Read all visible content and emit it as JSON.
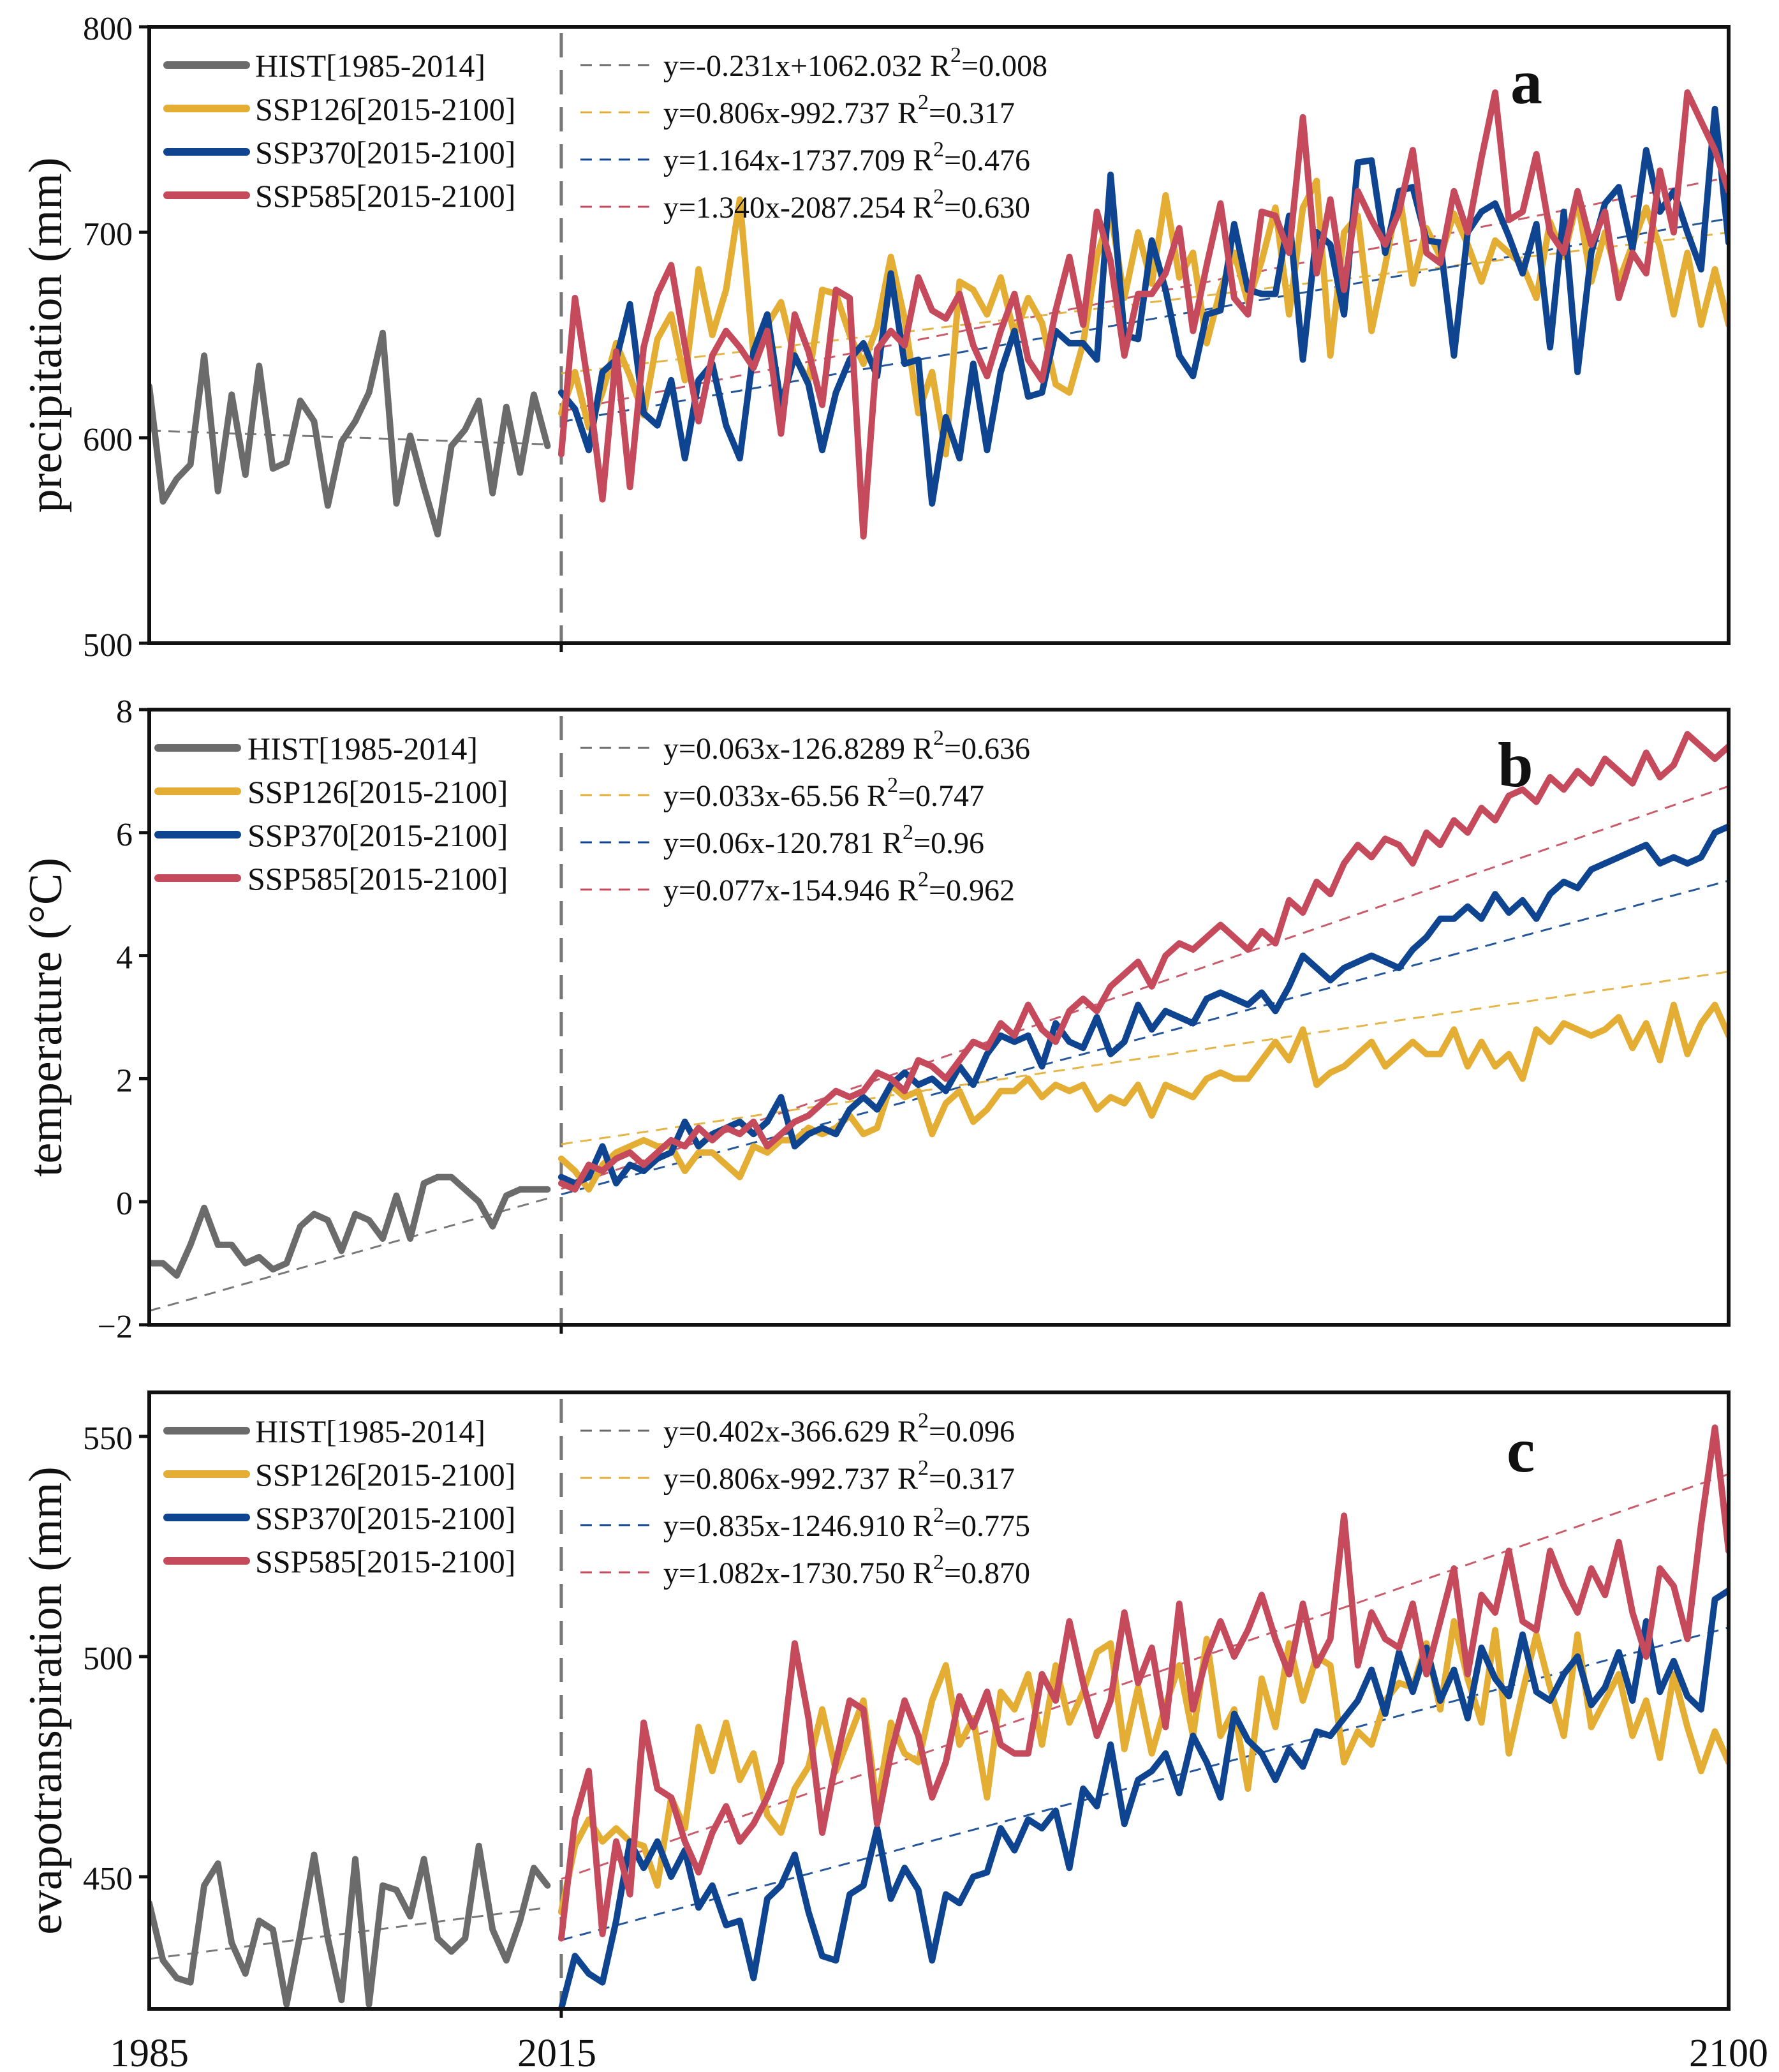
{
  "colors": {
    "hist": "#6b6b6b",
    "ssp126": "#e4ae34",
    "ssp370": "#0f4590",
    "ssp585": "#c54a5c"
  },
  "shared_x_axis": {
    "tick_labels": [
      "1985",
      "2015",
      "2100"
    ]
  },
  "chart_data": [
    {
      "type": "line",
      "panel_label": "a",
      "ylabel": "precipitation (mm)",
      "xlabel": "",
      "xlim": [
        1985,
        2100
      ],
      "ylim": [
        500,
        800
      ],
      "yticks": [
        500,
        600,
        700,
        800
      ],
      "divider_x": 2015,
      "legend": [
        "HIST[1985-2014]",
        "SSP126[2015-2100]",
        "SSP370[2015-2100]",
        "SSP585[2015-2100]"
      ],
      "legend_position": "top-left",
      "equations": [
        "y=-0.231x+1062.032 R²=0.008",
        "y=0.806x-992.737 R²=0.317",
        "y=1.164x-1737.709 R²=0.476",
        "y=1.340x-2087.254 R²=0.630"
      ],
      "series": [
        {
          "name": "HIST[1985-2014]",
          "key": "hist",
          "x_start": 1985,
          "trend": {
            "slope": -0.231,
            "intercept": 1062.032
          },
          "values": [
            625,
            569,
            580,
            587,
            640,
            574,
            621,
            582,
            635,
            585,
            588,
            618,
            608,
            567,
            598,
            608,
            622,
            651,
            568,
            601,
            576,
            553,
            596,
            604,
            618,
            573,
            615,
            583,
            621,
            596
          ]
        },
        {
          "name": "SSP126[2015-2100]",
          "key": "ssp126",
          "x_start": 2015,
          "trend": {
            "slope": 0.806,
            "intercept": -992.737
          },
          "values": [
            612,
            632,
            605,
            622,
            646,
            630,
            611,
            648,
            660,
            628,
            682,
            650,
            672,
            716,
            640,
            655,
            666,
            639,
            628,
            672,
            670,
            650,
            636,
            654,
            688,
            658,
            612,
            632,
            592,
            676,
            672,
            660,
            678,
            650,
            668,
            656,
            626,
            622,
            646,
            688,
            710,
            668,
            700,
            675,
            718,
            678,
            690,
            646,
            672,
            690,
            666,
            686,
            712,
            660,
            712,
            725,
            640,
            700,
            708,
            652,
            684,
            720,
            675,
            702,
            688,
            709,
            694,
            676,
            696,
            690,
            684,
            668,
            705,
            688,
            716,
            676,
            700,
            676,
            694,
            712,
            693,
            660,
            690,
            655,
            682,
            655
          ]
        },
        {
          "name": "SSP370[2015-2100]",
          "key": "ssp370",
          "x_start": 2015,
          "trend": {
            "slope": 1.164,
            "intercept": -1737.709
          },
          "values": [
            622,
            614,
            594,
            632,
            638,
            665,
            612,
            606,
            628,
            590,
            628,
            636,
            606,
            590,
            642,
            660,
            616,
            640,
            626,
            594,
            622,
            638,
            646,
            630,
            680,
            636,
            638,
            568,
            610,
            590,
            636,
            594,
            632,
            652,
            620,
            622,
            652,
            646,
            646,
            638,
            728,
            650,
            648,
            696,
            672,
            640,
            630,
            660,
            662,
            704,
            672,
            670,
            670,
            708,
            638,
            700,
            694,
            660,
            734,
            735,
            690,
            720,
            722,
            696,
            695,
            640,
            700,
            710,
            714,
            698,
            680,
            704,
            644,
            710,
            632,
            690,
            714,
            722,
            692,
            740,
            710,
            720,
            700,
            682,
            760,
            695
          ]
        },
        {
          "name": "SSP585[2015-2100]",
          "key": "ssp585",
          "x_start": 2015,
          "trend": {
            "slope": 1.34,
            "intercept": -2087.254
          },
          "values": [
            592,
            668,
            624,
            570,
            642,
            576,
            644,
            670,
            684,
            645,
            608,
            640,
            652,
            644,
            634,
            652,
            602,
            660,
            642,
            616,
            672,
            668,
            552,
            643,
            652,
            645,
            678,
            662,
            658,
            670,
            645,
            630,
            652,
            670,
            638,
            628,
            662,
            688,
            655,
            710,
            686,
            640,
            670,
            670,
            680,
            702,
            652,
            684,
            714,
            668,
            660,
            710,
            708,
            690,
            756,
            680,
            716,
            672,
            720,
            706,
            694,
            710,
            740,
            690,
            685,
            720,
            700,
            736,
            768,
            706,
            710,
            738,
            700,
            690,
            720,
            694,
            710,
            668,
            690,
            680,
            730,
            700,
            768,
            754,
            740,
            720
          ]
        }
      ]
    },
    {
      "type": "line",
      "panel_label": "b",
      "ylabel": "temperature (°C)",
      "xlabel": "",
      "xlim": [
        1985,
        2100
      ],
      "ylim": [
        -2,
        8
      ],
      "yticks": [
        -2,
        0,
        2,
        4,
        6,
        8
      ],
      "divider_x": 2015,
      "legend": [
        "HIST[1985-2014]",
        "SSP126[2015-2100]",
        "SSP370[2015-2100]",
        "SSP585[2015-2100]"
      ],
      "legend_position": "top-left",
      "equations": [
        "y=0.063x-126.8289 R²=0.636",
        "y=0.033x-65.56 R²=0.747",
        "y=0.06x-120.781 R²=0.96",
        "y=0.077x-154.946 R²=0.962"
      ],
      "series": [
        {
          "name": "HIST[1985-2014]",
          "key": "hist",
          "x_start": 1985,
          "trend": {
            "slope": 0.063,
            "intercept": -126.8289
          },
          "values": [
            -1.0,
            -1.0,
            -1.2,
            -0.7,
            -0.1,
            -0.7,
            -0.7,
            -1.0,
            -0.9,
            -1.1,
            -1.0,
            -0.4,
            -0.2,
            -0.3,
            -0.8,
            -0.2,
            -0.3,
            -0.6,
            0.1,
            -0.6,
            0.3,
            0.4,
            0.4,
            0.2,
            0.0,
            -0.4,
            0.1,
            0.2,
            0.2,
            0.2
          ]
        },
        {
          "name": "SSP126[2015-2100]",
          "key": "ssp126",
          "x_start": 2015,
          "trend": {
            "slope": 0.033,
            "intercept": -65.56
          },
          "values": [
            0.7,
            0.5,
            0.2,
            0.6,
            0.8,
            0.9,
            1.0,
            0.9,
            0.9,
            0.5,
            0.8,
            0.8,
            0.6,
            0.4,
            0.9,
            0.8,
            1.0,
            1.0,
            1.2,
            1.1,
            1.2,
            1.4,
            1.1,
            1.2,
            1.9,
            1.7,
            1.8,
            1.1,
            1.6,
            1.8,
            1.3,
            1.5,
            1.8,
            1.8,
            2.0,
            1.7,
            1.9,
            1.8,
            1.9,
            1.5,
            1.7,
            1.6,
            1.9,
            1.4,
            1.9,
            1.8,
            1.7,
            2.0,
            2.1,
            2.0,
            2.0,
            2.3,
            2.6,
            2.3,
            2.8,
            1.9,
            2.1,
            2.2,
            2.4,
            2.6,
            2.2,
            2.4,
            2.6,
            2.4,
            2.4,
            2.8,
            2.2,
            2.6,
            2.2,
            2.4,
            2.0,
            2.8,
            2.6,
            2.9,
            2.8,
            2.7,
            2.8,
            3.0,
            2.5,
            2.9,
            2.3,
            3.2,
            2.4,
            2.9,
            3.2,
            2.7
          ]
        },
        {
          "name": "SSP370[2015-2100]",
          "key": "ssp370",
          "x_start": 2015,
          "trend": {
            "slope": 0.06,
            "intercept": -120.781
          },
          "values": [
            0.4,
            0.3,
            0.4,
            0.9,
            0.3,
            0.6,
            0.5,
            0.7,
            0.8,
            1.3,
            0.9,
            1.1,
            1.2,
            1.3,
            1.1,
            1.3,
            1.7,
            0.9,
            1.1,
            1.2,
            1.1,
            1.5,
            1.7,
            1.5,
            1.9,
            2.1,
            1.9,
            2.0,
            1.8,
            2.2,
            1.9,
            2.4,
            2.7,
            2.6,
            2.7,
            2.2,
            2.9,
            2.6,
            2.5,
            3.0,
            2.4,
            2.6,
            3.2,
            2.8,
            3.1,
            3.0,
            2.9,
            3.3,
            3.4,
            3.3,
            3.2,
            3.4,
            3.1,
            3.5,
            4.0,
            3.8,
            3.6,
            3.8,
            3.9,
            4.0,
            3.9,
            3.8,
            4.1,
            4.3,
            4.6,
            4.6,
            4.8,
            4.6,
            5.0,
            4.7,
            4.9,
            4.6,
            5.0,
            5.2,
            5.1,
            5.4,
            5.5,
            5.6,
            5.7,
            5.8,
            5.5,
            5.6,
            5.5,
            5.6,
            6.0,
            6.1
          ]
        },
        {
          "name": "SSP585[2015-2100]",
          "key": "ssp585",
          "x_start": 2015,
          "trend": {
            "slope": 0.077,
            "intercept": -154.946
          },
          "values": [
            0.3,
            0.2,
            0.6,
            0.5,
            0.7,
            0.8,
            0.6,
            0.8,
            1.0,
            0.9,
            1.2,
            1.0,
            1.2,
            1.1,
            1.3,
            0.9,
            1.1,
            1.3,
            1.4,
            1.6,
            1.8,
            1.7,
            1.8,
            2.1,
            2.0,
            1.8,
            2.3,
            2.2,
            2.0,
            2.3,
            2.6,
            2.5,
            2.9,
            2.7,
            3.2,
            2.8,
            2.6,
            3.1,
            3.3,
            3.1,
            3.5,
            3.7,
            3.9,
            3.5,
            4.0,
            4.2,
            4.1,
            4.3,
            4.5,
            4.3,
            4.1,
            4.4,
            4.2,
            4.9,
            4.7,
            5.2,
            5.0,
            5.5,
            5.8,
            5.6,
            5.9,
            5.8,
            5.5,
            6.0,
            5.8,
            6.2,
            6.0,
            6.4,
            6.2,
            6.6,
            6.7,
            6.5,
            6.9,
            6.7,
            7.0,
            6.8,
            7.2,
            7.0,
            6.8,
            7.3,
            6.9,
            7.1,
            7.6,
            7.4,
            7.2,
            7.4
          ]
        }
      ]
    },
    {
      "type": "line",
      "panel_label": "c",
      "ylabel": "evapotranspiration (mm)",
      "xlabel": "",
      "xlim": [
        1985,
        2100
      ],
      "ylim": [
        420,
        560
      ],
      "yticks": [
        450,
        500,
        550
      ],
      "divider_x": 2015,
      "legend": [
        "HIST[1985-2014]",
        "SSP126[2015-2100]",
        "SSP370[2015-2100]",
        "SSP585[2015-2100]"
      ],
      "legend_position": "top-left",
      "equations": [
        "y=0.402x-366.629 R²=0.096",
        "y=0.806x-992.737 R²=0.317",
        "y=0.835x-1246.910 R²=0.775",
        "y=1.082x-1730.750 R²=0.870"
      ],
      "series": [
        {
          "name": "HIST[1985-2014]",
          "key": "hist",
          "x_start": 1985,
          "trend": {
            "slope": 0.402,
            "intercept": -366.629
          },
          "values": [
            444,
            431,
            427,
            426,
            448,
            453,
            435,
            428,
            440,
            438,
            421,
            437,
            455,
            436,
            422,
            454,
            421,
            448,
            447,
            441,
            454,
            436,
            433,
            436,
            457,
            438,
            431,
            440,
            452,
            448
          ]
        },
        {
          "name": "SSP126[2015-2100]",
          "key": "ssp126",
          "x_start": 2015,
          "trend": {
            "slope": 0.806,
            "intercept": -992.737
          },
          "values": [
            442,
            457,
            463,
            458,
            461,
            458,
            457,
            448,
            468,
            461,
            484,
            474,
            485,
            472,
            478,
            464,
            460,
            470,
            475,
            488,
            474,
            482,
            490,
            466,
            485,
            478,
            476,
            490,
            498,
            480,
            486,
            468,
            492,
            488,
            496,
            480,
            498,
            485,
            492,
            501,
            503,
            479,
            493,
            478,
            489,
            498,
            482,
            504,
            482,
            488,
            470,
            495,
            484,
            503,
            490,
            500,
            498,
            476,
            483,
            480,
            490,
            494,
            493,
            503,
            488,
            508,
            495,
            485,
            506,
            478,
            492,
            505,
            493,
            482,
            505,
            484,
            490,
            496,
            482,
            490,
            477,
            496,
            484,
            474,
            483,
            476
          ]
        },
        {
          "name": "SSP370[2015-2100]",
          "key": "ssp370",
          "x_start": 2015,
          "trend": {
            "slope": 0.835,
            "intercept": -1246.91
          },
          "values": [
            420,
            432,
            428,
            426,
            440,
            458,
            452,
            458,
            450,
            456,
            443,
            448,
            439,
            440,
            427,
            445,
            448,
            455,
            442,
            432,
            431,
            446,
            448,
            461,
            445,
            452,
            447,
            431,
            446,
            444,
            450,
            451,
            461,
            456,
            463,
            461,
            465,
            452,
            470,
            466,
            480,
            462,
            472,
            474,
            478,
            469,
            482,
            476,
            468,
            487,
            481,
            478,
            472,
            479,
            475,
            483,
            482,
            486,
            490,
            497,
            487,
            501,
            492,
            502,
            490,
            497,
            486,
            502,
            495,
            491,
            505,
            492,
            490,
            496,
            500,
            489,
            493,
            501,
            490,
            508,
            492,
            499,
            491,
            488,
            513,
            515
          ]
        },
        {
          "name": "SSP585[2015-2100]",
          "key": "ssp585",
          "x_start": 2015,
          "trend": {
            "slope": 1.082,
            "intercept": -1730.75
          },
          "values": [
            436,
            463,
            474,
            437,
            458,
            446,
            485,
            470,
            468,
            458,
            451,
            460,
            466,
            458,
            462,
            468,
            476,
            503,
            486,
            460,
            476,
            490,
            488,
            462,
            478,
            490,
            482,
            468,
            476,
            491,
            484,
            492,
            480,
            478,
            478,
            496,
            490,
            508,
            494,
            482,
            490,
            510,
            494,
            502,
            484,
            512,
            488,
            500,
            508,
            500,
            506,
            514,
            504,
            496,
            512,
            498,
            504,
            532,
            498,
            510,
            504,
            502,
            512,
            496,
            508,
            520,
            496,
            514,
            510,
            524,
            508,
            506,
            524,
            516,
            510,
            520,
            514,
            526,
            510,
            500,
            520,
            516,
            504,
            530,
            552,
            524
          ]
        }
      ]
    }
  ]
}
